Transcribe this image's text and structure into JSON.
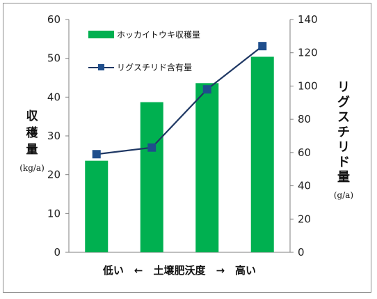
{
  "chart_data": {
    "type": "bar",
    "categories": [
      "",
      "",
      "",
      ""
    ],
    "series": [
      {
        "name": "ホッカイトウキ収穫量",
        "type": "bar",
        "axis": "left",
        "values": [
          23.6,
          38.7,
          43.6,
          50.4
        ],
        "color": "#00b050"
      },
      {
        "name": "リグスチリド含有量",
        "type": "line",
        "axis": "right",
        "values": [
          59,
          63,
          98,
          124
        ],
        "color": "#1f3864",
        "marker_color": "#1f4e8c"
      }
    ],
    "left_axis": {
      "title_chars": [
        "収",
        "穫",
        "量"
      ],
      "unit": "(kg/a)",
      "ylim": [
        0,
        60
      ],
      "ticks": [
        "0",
        "10",
        "20",
        "30",
        "40",
        "50",
        "60"
      ]
    },
    "right_axis": {
      "title_chars": [
        "リ",
        "グ",
        "ス",
        "チ",
        "リ",
        "ド",
        "量"
      ],
      "unit": "(g/a)",
      "ylim": [
        0,
        140
      ],
      "ticks": [
        "0",
        "20",
        "40",
        "60",
        "80",
        "100",
        "120",
        "140"
      ]
    },
    "xlabel": "低い　←　土壌肥沃度　→　高い",
    "grid": false,
    "legend": "top-left inside plot"
  }
}
